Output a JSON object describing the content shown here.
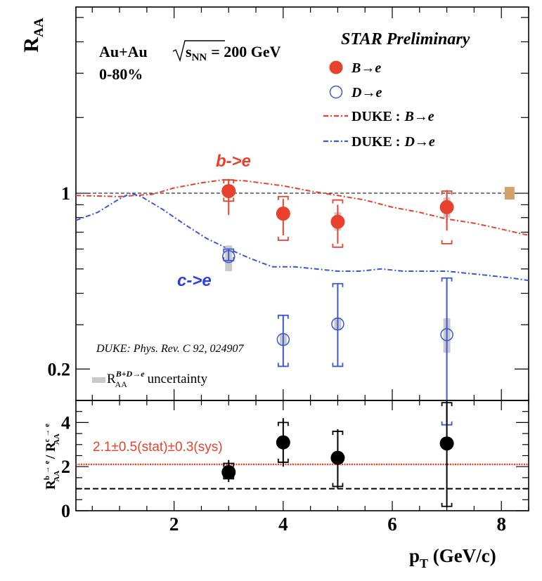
{
  "colors": {
    "b": "#e8412d",
    "d": "#3b57d6",
    "sys": "#c9c9c9",
    "norm": "#d2a26e",
    "ratio": "#e8412d",
    "axis": "#000000"
  },
  "chart_data": [
    {
      "type": "scatter",
      "panel": "top",
      "ylabel": "R",
      "ylabel_sub": "AA",
      "yscale": "log",
      "xlim": [
        0.2,
        8.5
      ],
      "ylim": [
        0.15,
        5.5
      ],
      "y_tick_labels": [
        {
          "value": 1,
          "label": "1"
        },
        {
          "value": 0.2,
          "label": "0.2"
        }
      ],
      "reference_line": 1,
      "title_lines": {
        "system": "Au+Au",
        "sqrt": "s",
        "sqrt_sub": "NN",
        "energy": "= 200 GeV",
        "centrality": "0-80%"
      },
      "preliminary": "STAR Preliminary",
      "legend": [
        {
          "label": "B→e",
          "kind": "filled-marker"
        },
        {
          "label": "D→e",
          "kind": "open-marker"
        },
        {
          "prefix": "DUKE :",
          "label": "B→e",
          "kind": "dash-dot-red"
        },
        {
          "prefix": "DUKE :",
          "label": "D→e",
          "kind": "dash-dot-blue"
        }
      ],
      "annotations": {
        "b_label": "b->e",
        "c_label": "c->e",
        "reference": "DUKE: Phys. Rev. C 92, 024907",
        "uncert_main": "R",
        "uncert_sub": "AA",
        "uncert_sup": "B+D→e",
        "uncert_text": " uncertainty"
      },
      "series": [
        {
          "name": "B→e",
          "marker": "filled-circle",
          "x": [
            3.0,
            4.0,
            5.0,
            7.0
          ],
          "y": [
            1.02,
            0.83,
            0.77,
            0.88
          ],
          "stat_lo": [
            0.82,
            0.68,
            0.63,
            0.71
          ],
          "stat_hi": [
            1.14,
            0.95,
            0.9,
            1.03
          ],
          "sys_lo": [
            0.93,
            0.65,
            0.61,
            0.63
          ],
          "sys_hi": [
            1.13,
            0.97,
            0.94,
            1.02
          ],
          "gray_lo": [
            0.96,
            0.78,
            0.71,
            0.8
          ],
          "gray_hi": [
            1.07,
            0.88,
            0.84,
            0.96
          ]
        },
        {
          "name": "D→e",
          "marker": "open-circle",
          "x": [
            3.0,
            4.0,
            5.0,
            7.0
          ],
          "y": [
            0.56,
            0.262,
            0.302,
            0.274
          ],
          "stat_lo": [
            0.54,
            0.205,
            0.205,
            0.12
          ],
          "stat_hi": [
            0.6,
            0.327,
            0.437,
            0.46
          ],
          "sys_lo": [
            0.54,
            0.205,
            0.205,
            0.12
          ],
          "sys_hi": [
            0.6,
            0.327,
            0.437,
            0.46
          ],
          "gray_lo": [
            0.49,
            0.249,
            0.285,
            0.232
          ],
          "gray_hi": [
            0.62,
            0.276,
            0.32,
            0.318
          ]
        },
        {
          "name": "DUKE : B→e",
          "type": "line",
          "x": [
            0.2,
            1.0,
            1.6,
            2.0,
            2.5,
            2.9,
            3.3,
            4.0,
            4.5,
            5.0,
            5.5,
            6.0,
            6.5,
            7.0,
            7.5,
            8.0,
            8.5
          ],
          "y": [
            0.98,
            0.97,
            0.99,
            1.05,
            1.1,
            1.13,
            1.12,
            1.07,
            1.02,
            0.98,
            0.94,
            0.88,
            0.84,
            0.79,
            0.76,
            0.72,
            0.68
          ]
        },
        {
          "name": "DUKE : D→e",
          "type": "line",
          "x": [
            0.2,
            0.6,
            1.0,
            1.2,
            1.4,
            1.8,
            2.2,
            2.6,
            3.0,
            3.4,
            3.8,
            4.2,
            4.6,
            5.0,
            5.4,
            5.8,
            6.2,
            6.6,
            7.0,
            7.4,
            7.8,
            8.2,
            8.5
          ],
          "y": [
            0.78,
            0.84,
            0.95,
            1.0,
            0.97,
            0.86,
            0.75,
            0.66,
            0.6,
            0.55,
            0.51,
            0.51,
            0.5,
            0.49,
            0.49,
            0.5,
            0.49,
            0.49,
            0.49,
            0.48,
            0.47,
            0.46,
            0.45
          ]
        }
      ],
      "norm_box": {
        "x": 8.15,
        "y": 1.0
      }
    },
    {
      "type": "scatter",
      "panel": "bottom",
      "xlabel": "p",
      "xlabel_sub": "T",
      "xlabel_unit": " (GeV/c)",
      "ylabel_main_1": "R",
      "ylabel_sub_1": "AA",
      "ylabel_sup_1": "b → e",
      "ylabel_slash": " / ",
      "ylabel_main_2": "R",
      "ylabel_sub_2": "AA",
      "ylabel_sup_2": "c → e",
      "xlim": [
        0.2,
        8.5
      ],
      "ylim": [
        0,
        5
      ],
      "x_tick_labels": [
        {
          "value": 2,
          "label": "2"
        },
        {
          "value": 4,
          "label": "4"
        },
        {
          "value": 6,
          "label": "6"
        },
        {
          "value": 8,
          "label": "8"
        }
      ],
      "y_tick_labels": [
        {
          "value": 0,
          "label": "0"
        },
        {
          "value": 2,
          "label": "2"
        },
        {
          "value": 4,
          "label": "4"
        }
      ],
      "fit_value": 2.1,
      "fit_label": "2.1±0.5(stat)±0.3(sys)",
      "reference_line": 1,
      "series": [
        {
          "name": "ratio",
          "x": [
            3.0,
            4.0,
            5.0,
            7.0
          ],
          "y": [
            1.75,
            3.1,
            2.4,
            3.05
          ],
          "stat_lo": [
            1.3,
            2.0,
            1.0,
            0.15
          ],
          "stat_hi": [
            2.3,
            4.2,
            3.7,
            5.0
          ],
          "sys_lo": [
            1.45,
            2.2,
            1.1,
            0.2
          ],
          "sys_hi": [
            2.15,
            4.0,
            3.6,
            4.9
          ]
        }
      ]
    }
  ]
}
